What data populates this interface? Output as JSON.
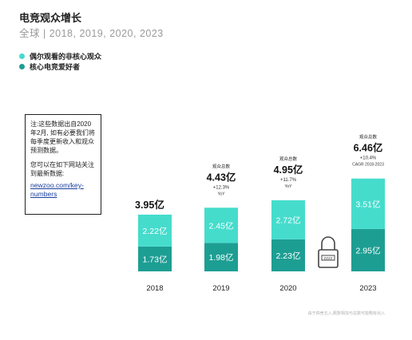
{
  "title": "电竞观众增长",
  "subtitle": "全球 | 2018, 2019, 2020, 2023",
  "legend": [
    {
      "label": "偶尔观看的非核心观众",
      "color": "#45dccc"
    },
    {
      "label": "核心电竞爱好者",
      "color": "#1d9e93"
    }
  ],
  "note": {
    "line1": "注:这些数据出自2020年2月, 如有必要我们将每季度更新收入和观众预测数据。",
    "line2": "您可以在如下网站关注到最新数据:",
    "link": "newzoo.com/key-numbers"
  },
  "footnote": "由于四舍五入,概数相加与总数可能略有出入",
  "icon": "padlock-icon",
  "chart_data": {
    "type": "bar",
    "stacked": true,
    "categories": [
      "2018",
      "2019",
      "2020",
      "2023"
    ],
    "series": [
      {
        "name": "核心电竞爱好者",
        "values": [
          1.73,
          1.98,
          2.23,
          2.95
        ],
        "labels": [
          "1.73亿",
          "1.98亿",
          "2.23亿",
          "2.95亿"
        ],
        "color": "#1d9e93"
      },
      {
        "name": "偶尔观看的非核心观众",
        "values": [
          2.22,
          2.45,
          2.72,
          3.51
        ],
        "labels": [
          "2.22亿",
          "2.45亿",
          "2.72亿",
          "3.51亿"
        ],
        "color": "#45dccc"
      }
    ],
    "totals": [
      {
        "header": "",
        "value": "3.95亿",
        "growth": "",
        "unit": ""
      },
      {
        "header": "观众总数",
        "value": "4.43亿",
        "growth": "+12.3%",
        "unit": "YoY"
      },
      {
        "header": "观众总数",
        "value": "4.95亿",
        "growth": "+11.7%",
        "unit": "YoY"
      },
      {
        "header": "观众总数",
        "value": "6.46亿",
        "growth": "+10.4%",
        "unit": "CAGR 2018-2023"
      }
    ]
  }
}
